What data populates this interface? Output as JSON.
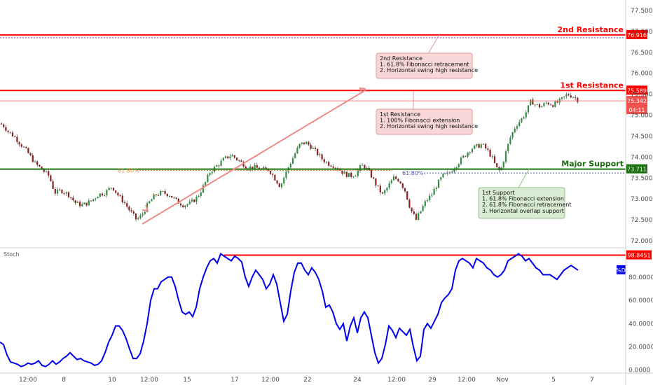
{
  "chart_data": [
    {
      "type": "candlestick",
      "ylim": [
        71.85,
        77.75
      ],
      "y_ticks": [
        72.0,
        72.5,
        73.0,
        73.5,
        74.0,
        74.5,
        75.0,
        75.5,
        76.0,
        76.5,
        77.0,
        77.5
      ],
      "x_ticks": [
        "12:00",
        "8",
        "10",
        "12:00",
        "15",
        "17",
        "12:00",
        "22",
        "24",
        "12:00",
        "29",
        "12:00",
        "Nov",
        "5",
        "7"
      ],
      "price_path": [
        [
          0,
          74.8
        ],
        [
          5,
          74.75
        ],
        [
          12,
          74.6
        ],
        [
          20,
          74.5
        ],
        [
          30,
          74.3
        ],
        [
          40,
          74.1
        ],
        [
          50,
          73.85
        ],
        [
          60,
          73.7
        ],
        [
          70,
          73.55
        ],
        [
          78,
          73.15
        ],
        [
          88,
          73.2
        ],
        [
          98,
          73.1
        ],
        [
          108,
          72.9
        ],
        [
          118,
          72.85
        ],
        [
          130,
          72.95
        ],
        [
          140,
          73.1
        ],
        [
          150,
          73.15
        ],
        [
          160,
          73.3
        ],
        [
          168,
          73.1
        ],
        [
          178,
          72.9
        ],
        [
          186,
          72.7
        ],
        [
          195,
          72.5
        ],
        [
          202,
          72.6
        ],
        [
          212,
          72.9
        ],
        [
          222,
          73.1
        ],
        [
          232,
          73.15
        ],
        [
          242,
          73.1
        ],
        [
          252,
          72.95
        ],
        [
          262,
          72.85
        ],
        [
          272,
          72.9
        ],
        [
          282,
          73.05
        ],
        [
          292,
          73.35
        ],
        [
          300,
          73.65
        ],
        [
          310,
          73.8
        ],
        [
          320,
          73.95
        ],
        [
          330,
          74.05
        ],
        [
          338,
          73.95
        ],
        [
          346,
          73.85
        ],
        [
          354,
          73.75
        ],
        [
          364,
          73.75
        ],
        [
          374,
          73.7
        ],
        [
          384,
          73.7
        ],
        [
          392,
          73.5
        ],
        [
          400,
          73.3
        ],
        [
          410,
          73.7
        ],
        [
          420,
          74.05
        ],
        [
          428,
          74.3
        ],
        [
          436,
          74.35
        ],
        [
          444,
          74.25
        ],
        [
          452,
          74.1
        ],
        [
          460,
          73.95
        ],
        [
          468,
          73.85
        ],
        [
          476,
          73.8
        ],
        [
          484,
          73.7
        ],
        [
          492,
          73.6
        ],
        [
          500,
          73.55
        ],
        [
          508,
          73.6
        ],
        [
          516,
          73.8
        ],
        [
          522,
          73.75
        ],
        [
          530,
          73.55
        ],
        [
          538,
          73.3
        ],
        [
          546,
          73.1
        ],
        [
          554,
          73.3
        ],
        [
          562,
          73.5
        ],
        [
          570,
          73.45
        ],
        [
          578,
          73.2
        ],
        [
          586,
          72.75
        ],
        [
          594,
          72.5
        ],
        [
          600,
          72.7
        ],
        [
          608,
          72.95
        ],
        [
          616,
          73.1
        ],
        [
          624,
          73.35
        ],
        [
          632,
          73.55
        ],
        [
          640,
          73.6
        ],
        [
          648,
          73.75
        ],
        [
          656,
          73.9
        ],
        [
          664,
          74.05
        ],
        [
          672,
          74.2
        ],
        [
          680,
          74.25
        ],
        [
          688,
          74.3
        ],
        [
          696,
          74.15
        ],
        [
          702,
          74.0
        ],
        [
          708,
          73.75
        ],
        [
          714,
          73.65
        ],
        [
          720,
          74.0
        ],
        [
          728,
          74.45
        ],
        [
          736,
          74.75
        ],
        [
          744,
          74.9
        ],
        [
          752,
          75.1
        ],
        [
          758,
          75.35
        ],
        [
          764,
          75.25
        ],
        [
          772,
          75.2
        ],
        [
          780,
          75.3
        ],
        [
          790,
          75.25
        ],
        [
          800,
          75.35
        ],
        [
          810,
          75.5
        ],
        [
          818,
          75.45
        ],
        [
          826,
          75.35
        ]
      ],
      "levels": [
        {
          "label": "2nd Resistance",
          "value": 76.916,
          "value_text": "76.916",
          "color": "#ff0000"
        },
        {
          "label": "1st Resistance",
          "value": 75.589,
          "value_text": "75.589",
          "color": "#ff0000"
        },
        {
          "label": "Major Support",
          "value": 73.711,
          "value_text": "73.711",
          "color": "#1a6e0e"
        }
      ],
      "current_price": {
        "value": 75.342,
        "value_text": "75.342",
        "countdown": "04:11"
      },
      "fib_labels": [
        {
          "text": "61.80%",
          "color": "#e69138"
        },
        {
          "text": "61.80%",
          "color": "#4c56c8"
        }
      ],
      "notes": [
        {
          "id": "note-2nd-resistance",
          "lines": [
            "2nd Resistance",
            "1. 61.8% Fibonacci retracement",
            "2. Horizontal swing high resistance"
          ],
          "theme": "red"
        },
        {
          "id": "note-1st-resistance",
          "lines": [
            "1st Resistance",
            "1. 100% Fibonacci extension",
            "2. Horizontal swing high resistance"
          ],
          "theme": "red"
        },
        {
          "id": "note-1st-support",
          "lines": [
            "1st Support",
            "1. 61.8% Fibonacci extension",
            "2. 61.8% Fibonacci retracement",
            "3. Horizontal overlap support"
          ],
          "theme": "green"
        }
      ]
    },
    {
      "type": "line",
      "title": "Stoch",
      "ylim": [
        -2,
        104
      ],
      "y_ticks": [
        0,
        20,
        40,
        60,
        80
      ],
      "y_tick_labels": [
        "0.0000",
        "20.0000",
        "40.0000",
        "60.0000",
        "80.0000"
      ],
      "series": [
        {
          "name": "%D",
          "color": "#0000ee"
        }
      ],
      "level": {
        "value": 98.8451,
        "value_text": "98.8451",
        "color": "#ff0000"
      },
      "path": [
        [
          0,
          24
        ],
        [
          5,
          22
        ],
        [
          10,
          13
        ],
        [
          15,
          7
        ],
        [
          20,
          6
        ],
        [
          25,
          5
        ],
        [
          30,
          3
        ],
        [
          35,
          4
        ],
        [
          40,
          6
        ],
        [
          45,
          5
        ],
        [
          50,
          6
        ],
        [
          55,
          8
        ],
        [
          60,
          4
        ],
        [
          65,
          3
        ],
        [
          70,
          5
        ],
        [
          75,
          8
        ],
        [
          80,
          5
        ],
        [
          85,
          7
        ],
        [
          90,
          10
        ],
        [
          95,
          12
        ],
        [
          100,
          15
        ],
        [
          105,
          12
        ],
        [
          110,
          9
        ],
        [
          115,
          10
        ],
        [
          120,
          8
        ],
        [
          125,
          7
        ],
        [
          130,
          6
        ],
        [
          135,
          4
        ],
        [
          140,
          5
        ],
        [
          145,
          8
        ],
        [
          150,
          15
        ],
        [
          155,
          24
        ],
        [
          160,
          30
        ],
        [
          165,
          38
        ],
        [
          170,
          38
        ],
        [
          175,
          34
        ],
        [
          180,
          27
        ],
        [
          185,
          18
        ],
        [
          190,
          10
        ],
        [
          195,
          10
        ],
        [
          200,
          14
        ],
        [
          205,
          25
        ],
        [
          210,
          40
        ],
        [
          215,
          60
        ],
        [
          220,
          70
        ],
        [
          225,
          70
        ],
        [
          230,
          76
        ],
        [
          235,
          78
        ],
        [
          240,
          80
        ],
        [
          245,
          80
        ],
        [
          250,
          72
        ],
        [
          255,
          60
        ],
        [
          260,
          50
        ],
        [
          265,
          48
        ],
        [
          270,
          50
        ],
        [
          275,
          46
        ],
        [
          280,
          54
        ],
        [
          285,
          70
        ],
        [
          290,
          80
        ],
        [
          295,
          88
        ],
        [
          300,
          94
        ],
        [
          305,
          96
        ],
        [
          310,
          92
        ],
        [
          315,
          100
        ],
        [
          320,
          98
        ],
        [
          325,
          96
        ],
        [
          330,
          94
        ],
        [
          335,
          98
        ],
        [
          340,
          96
        ],
        [
          345,
          93
        ],
        [
          350,
          80
        ],
        [
          355,
          72
        ],
        [
          360,
          80
        ],
        [
          365,
          86
        ],
        [
          370,
          82
        ],
        [
          375,
          78
        ],
        [
          380,
          70
        ],
        [
          385,
          74
        ],
        [
          390,
          82
        ],
        [
          395,
          74
        ],
        [
          400,
          58
        ],
        [
          405,
          42
        ],
        [
          410,
          48
        ],
        [
          415,
          68
        ],
        [
          420,
          84
        ],
        [
          425,
          92
        ],
        [
          430,
          92
        ],
        [
          435,
          86
        ],
        [
          440,
          82
        ],
        [
          445,
          88
        ],
        [
          450,
          84
        ],
        [
          455,
          78
        ],
        [
          460,
          68
        ],
        [
          465,
          54
        ],
        [
          470,
          56
        ],
        [
          475,
          50
        ],
        [
          480,
          40
        ],
        [
          485,
          35
        ],
        [
          490,
          40
        ],
        [
          495,
          25
        ],
        [
          500,
          38
        ],
        [
          505,
          45
        ],
        [
          510,
          32
        ],
        [
          515,
          45
        ],
        [
          520,
          50
        ],
        [
          525,
          45
        ],
        [
          530,
          30
        ],
        [
          535,
          15
        ],
        [
          540,
          6
        ],
        [
          545,
          10
        ],
        [
          550,
          22
        ],
        [
          555,
          38
        ],
        [
          560,
          34
        ],
        [
          565,
          28
        ],
        [
          570,
          36
        ],
        [
          575,
          33
        ],
        [
          580,
          30
        ],
        [
          585,
          35
        ],
        [
          590,
          20
        ],
        [
          595,
          8
        ],
        [
          600,
          12
        ],
        [
          605,
          35
        ],
        [
          610,
          40
        ],
        [
          615,
          36
        ],
        [
          620,
          42
        ],
        [
          625,
          48
        ],
        [
          630,
          58
        ],
        [
          635,
          62
        ],
        [
          640,
          65
        ],
        [
          645,
          70
        ],
        [
          650,
          86
        ],
        [
          655,
          94
        ],
        [
          660,
          96
        ],
        [
          665,
          94
        ],
        [
          670,
          92
        ],
        [
          675,
          88
        ],
        [
          680,
          96
        ],
        [
          685,
          94
        ],
        [
          690,
          92
        ],
        [
          695,
          88
        ],
        [
          700,
          86
        ],
        [
          705,
          82
        ],
        [
          710,
          80
        ],
        [
          715,
          82
        ],
        [
          720,
          86
        ],
        [
          725,
          94
        ],
        [
          730,
          96
        ],
        [
          735,
          98
        ],
        [
          740,
          100
        ],
        [
          745,
          98
        ],
        [
          750,
          94
        ],
        [
          755,
          96
        ],
        [
          760,
          92
        ],
        [
          765,
          88
        ],
        [
          770,
          86
        ],
        [
          775,
          82
        ],
        [
          780,
          82
        ],
        [
          785,
          82
        ],
        [
          790,
          80
        ],
        [
          795,
          78
        ],
        [
          800,
          82
        ],
        [
          805,
          86
        ],
        [
          810,
          88
        ],
        [
          815,
          90
        ],
        [
          820,
          88
        ],
        [
          825,
          86
        ]
      ]
    }
  ]
}
